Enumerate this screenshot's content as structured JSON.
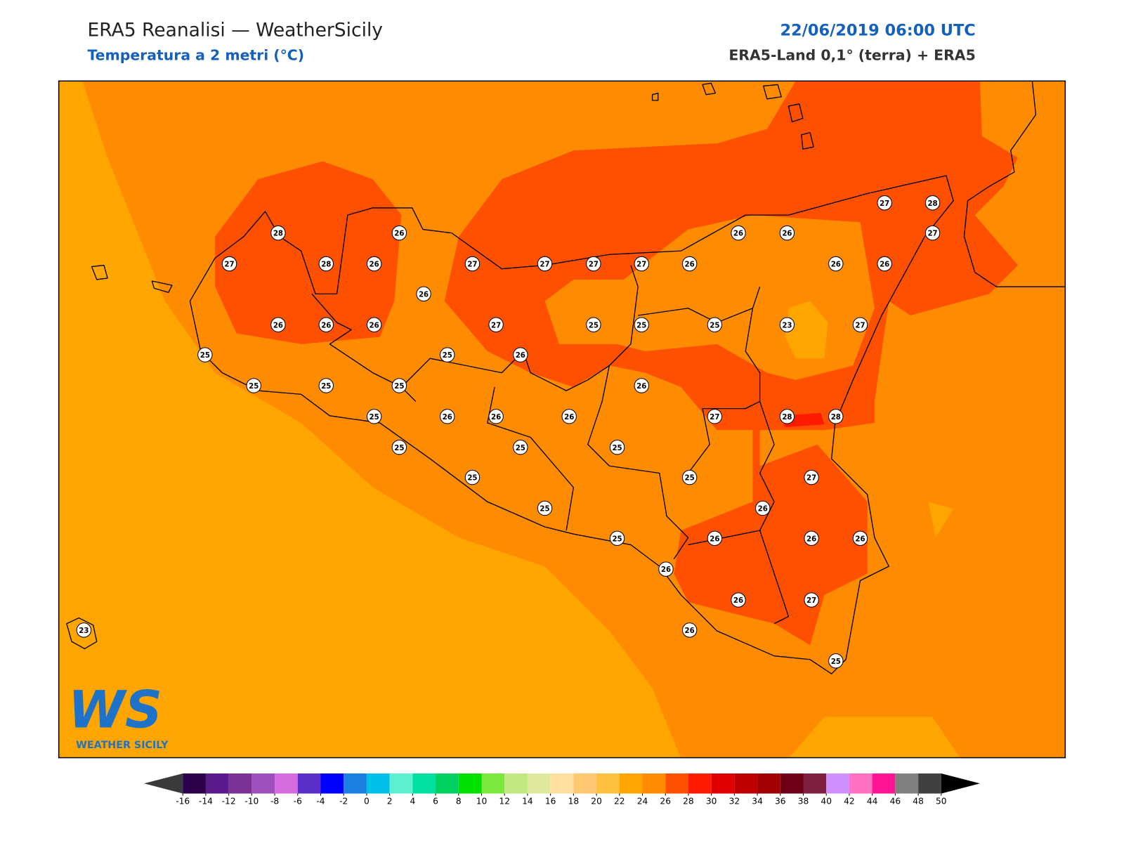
{
  "header": {
    "title": "ERA5 Reanalisi — WeatherSicily",
    "subtitle": "Temperatura a 2 metri (°C)",
    "date": "22/06/2019 06:00 UTC",
    "source": "ERA5-Land 0,1° (terra) + ERA5"
  },
  "logo": {
    "mark": "WS",
    "name": "WEATHER SICILY"
  },
  "stations": [
    28,
    26,
    27,
    28,
    26,
    27,
    27,
    27,
    27,
    26,
    26,
    26,
    27,
    28,
    27,
    26,
    26,
    26,
    26,
    26,
    26,
    27,
    25,
    25,
    25,
    23,
    27,
    25,
    25,
    26,
    25,
    25,
    25,
    26,
    25,
    26,
    26,
    26,
    27,
    28,
    28,
    25,
    25,
    25,
    25,
    25,
    27,
    26,
    25,
    25,
    26,
    26,
    26,
    26,
    26,
    27,
    23,
    26,
    25
  ],
  "colorbar": {
    "ticks": [
      -16,
      -14,
      -12,
      -10,
      -8,
      -6,
      -4,
      -2,
      0,
      2,
      4,
      6,
      8,
      10,
      12,
      14,
      16,
      18,
      20,
      22,
      24,
      26,
      28,
      30,
      32,
      34,
      36,
      38,
      40,
      42,
      44,
      46,
      48,
      50
    ],
    "colors": [
      "#2d004b",
      "#5b1a8b",
      "#7b3294",
      "#9c4fbd",
      "#d66be0",
      "#5b2fc9",
      "#0000ff",
      "#1a7fe0",
      "#00c0e8",
      "#5cf0d0",
      "#00e0a0",
      "#00d060",
      "#00e000",
      "#7ae83c",
      "#c0e880",
      "#e0e8a0",
      "#ffe0a0",
      "#ffc870",
      "#ffc040",
      "#ffa500",
      "#ff8c00",
      "#ff5000",
      "#ff1a00",
      "#e00000",
      "#c00000",
      "#a00000",
      "#700018",
      "#802040",
      "#d090ff",
      "#ff70c0",
      "#ff1493",
      "#808080",
      "#404040"
    ],
    "under_color": "#3a3a3a",
    "over_color": "#000000"
  }
}
